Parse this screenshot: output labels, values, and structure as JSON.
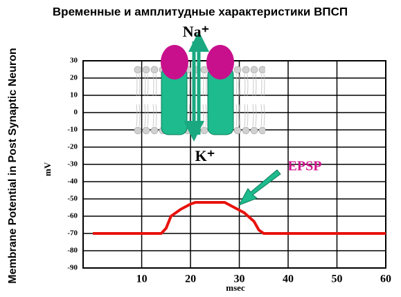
{
  "chart_data": {
    "type": "line",
    "title": "Временные и амплитудные характеристики ВПСП",
    "ylabel": "Membrane Potential in Post Synaptic Neuron",
    "yunit": "mV",
    "xlabel": "msec",
    "annotation": "EPSP",
    "x": [
      0,
      14,
      15,
      16,
      18,
      20,
      21,
      27,
      29,
      31,
      33,
      34,
      35,
      60
    ],
    "series": [
      {
        "color": "#e8120c",
        "values": [
          -70,
          -70,
          -67,
          -60,
          -56,
          -53,
          -52,
          -52,
          -55,
          -58,
          -63,
          -68,
          -70,
          -70
        ]
      }
    ],
    "xlim": [
      -2,
      60
    ],
    "xticks": [
      10,
      20,
      30,
      40,
      50,
      60
    ],
    "ylim": [
      -90,
      30
    ],
    "yticks": [
      30,
      20,
      10,
      0,
      -10,
      -20,
      -30,
      -40,
      -50,
      -60,
      -70,
      -80,
      -90
    ],
    "grid": true
  },
  "diagram": {
    "na_label": "Na⁺",
    "k_label": "K⁺"
  }
}
